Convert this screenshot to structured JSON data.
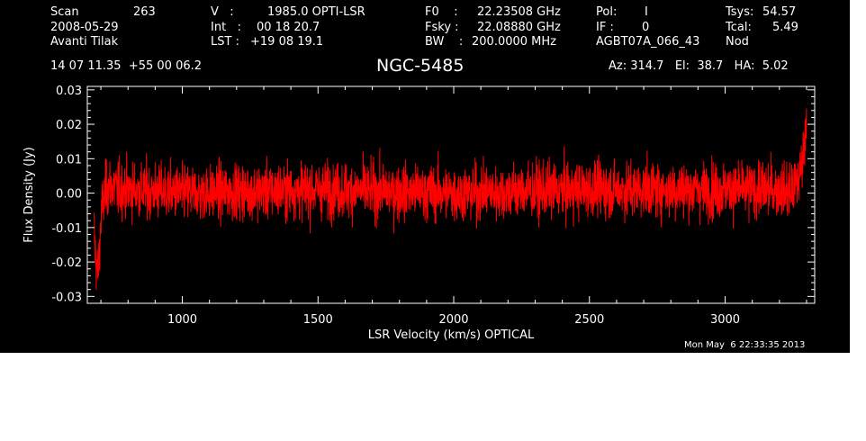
{
  "header": {
    "scan_label": "Scan",
    "scan_value": "263",
    "date": "2008-05-29",
    "observer": "Avanti Tilak",
    "v_label": "V   :",
    "v_value": "1985.0 OPTI-LSR",
    "int_label": "Int   :",
    "int_value": "00 18 20.7",
    "lst_label": "LST :",
    "lst_value": "+19 08 19.1",
    "f0_label": "F0    :",
    "f0_value": "22.23508 GHz",
    "fsky_label": "Fsky :",
    "fsky_value": "22.08880 GHz",
    "bw_label": "BW    :",
    "bw_value": "200.0000 MHz",
    "pol_label": "Pol:",
    "pol_value": "I",
    "if_label": "IF :",
    "if_value": "0",
    "project": "AGBT07A_066_43",
    "tsys_label": "Tsys:",
    "tsys_value": "54.57",
    "tcal_label": "Tcal:",
    "tcal_value": "5.49",
    "nod": "Nod",
    "coords": "14 07 11.35  +55 00 06.2",
    "az_el_ha": "Az: 314.7   El:  38.7   HA:  5.02",
    "timestamp": "Mon May  6 22:33:35 2013"
  },
  "colors": {
    "background": "#000000",
    "foreground": "#ffffff",
    "series": "#ff0000"
  },
  "chart_data": {
    "type": "line",
    "title": "NGC-5485",
    "xlabel": "LSR Velocity (km/s) OPTICAL",
    "ylabel": "Flux Density (Jy)",
    "xlim": [
      650,
      3330
    ],
    "ylim": [
      -0.032,
      0.031
    ],
    "x_ticks": [
      1000,
      1500,
      2000,
      2500,
      3000
    ],
    "x_tick_labels": [
      "1000",
      "1500",
      "2000",
      "2500",
      "3000"
    ],
    "y_ticks": [
      -0.03,
      -0.02,
      -0.01,
      0.0,
      0.01,
      0.02,
      0.03
    ],
    "y_tick_labels": [
      "-0.03",
      "-0.02",
      "-0.01",
      "0.00",
      "0.01",
      "0.02",
      "0.03"
    ],
    "grid": false,
    "series": [
      {
        "x": [
          675,
          680,
          685,
          690,
          695,
          700,
          705,
          710,
          715,
          720,
          730,
          740,
          760,
          800,
          1000,
          1500,
          2000,
          2500,
          3000,
          3200,
          3240,
          3260,
          3270,
          3280,
          3290,
          3300
        ],
        "y": [
          -0.011,
          -0.018,
          -0.022,
          -0.023,
          -0.016,
          -0.008,
          -0.004,
          -0.002,
          0.0,
          0.001,
          0.002,
          0.002,
          0.001,
          0.001,
          0.0,
          0.001,
          0.0,
          0.001,
          0.001,
          0.001,
          0.0,
          0.002,
          0.004,
          0.008,
          0.014,
          0.024
        ],
        "noise_rms": 0.004
      }
    ]
  }
}
